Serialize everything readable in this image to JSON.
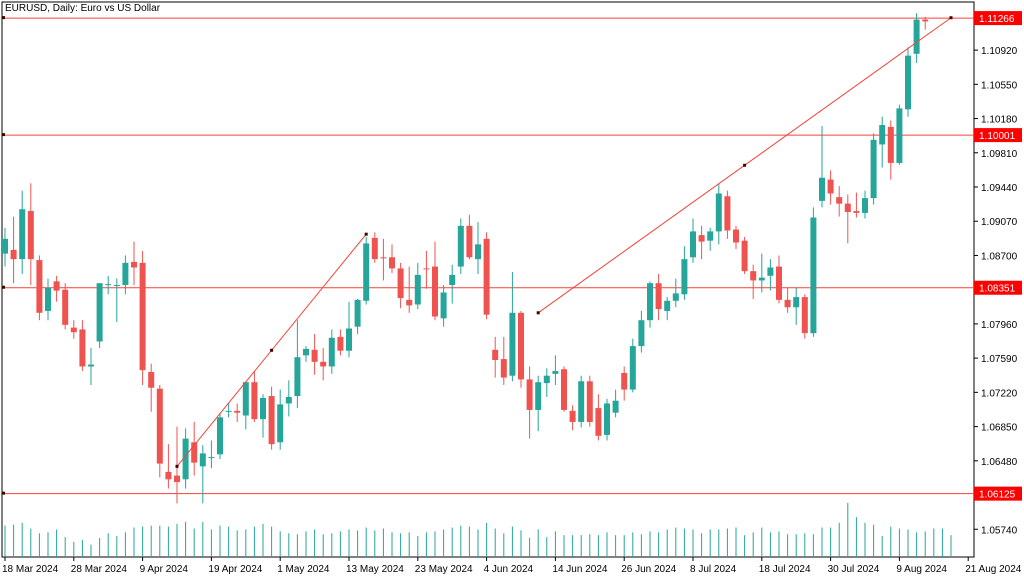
{
  "chart_data": {
    "type": "candlestick",
    "title": "EURUSD, Daily:  Euro vs US Dollar",
    "colors": {
      "bull": "#26a69a",
      "bear": "#ef5350",
      "hline": "#f44336",
      "price_tag": "#ff0000",
      "axis": "#000000",
      "volume": "#26a69a"
    },
    "ylim": [
      1.0544,
      1.1144
    ],
    "y_ticks": [
      1.1092,
      1.1055,
      1.1018,
      1.0981,
      1.0944,
      1.0907,
      1.087,
      1.0796,
      1.0759,
      1.0722,
      1.0685,
      1.0648,
      1.0574
    ],
    "y_tick_labels": [
      "1.10920",
      "1.10550",
      "1.10180",
      "1.09810",
      "1.09440",
      "1.09070",
      "1.08700",
      "1.07960",
      "1.07590",
      "1.07220",
      "1.06850",
      "1.06480",
      "1.05740"
    ],
    "hlines": [
      {
        "value": 1.11266,
        "label": "1.11266"
      },
      {
        "value": 1.10001,
        "label": "1.10001"
      },
      {
        "value": 1.08351,
        "label": "1.08351"
      },
      {
        "value": 1.06125,
        "label": "1.06125"
      }
    ],
    "x_labels": [
      "18 Mar 2024",
      "28 Mar 2024",
      "9 Apr 2024",
      "19 Apr 2024",
      "1 May 2024",
      "13 May 2024",
      "23 May 2024",
      "4 Jun 2024",
      "14 Jun 2024",
      "26 Jun 2024",
      "8 Jul 2024",
      "18 Jul 2024",
      "30 Jul 2024",
      "9 Aug 2024",
      "21 Aug 2024"
    ],
    "x_label_index": [
      0,
      8,
      16,
      24,
      32,
      40,
      48,
      56,
      64,
      72,
      80,
      88,
      96,
      104,
      112
    ],
    "trend_lines": [
      {
        "from_index": 20,
        "from_value": 1.0642,
        "to_index": 42,
        "to_value": 1.0893
      },
      {
        "from_index": 62,
        "from_value": 1.0808,
        "to_index": 110,
        "to_value": 1.1127
      }
    ],
    "candles": [
      {
        "o": 1.0872,
        "h": 1.09,
        "l": 1.0858,
        "c": 1.0888
      },
      {
        "o": 1.0876,
        "h": 1.0912,
        "l": 1.084,
        "c": 1.0866
      },
      {
        "o": 1.0866,
        "h": 1.094,
        "l": 1.085,
        "c": 1.092
      },
      {
        "o": 1.0918,
        "h": 1.0948,
        "l": 1.0838,
        "c": 1.0866
      },
      {
        "o": 1.0865,
        "h": 1.087,
        "l": 1.08,
        "c": 1.0808
      },
      {
        "o": 1.081,
        "h": 1.0845,
        "l": 1.08,
        "c": 1.0835
      },
      {
        "o": 1.0842,
        "h": 1.0848,
        "l": 1.082,
        "c": 1.0832
      },
      {
        "o": 1.0833,
        "h": 1.084,
        "l": 1.079,
        "c": 1.0795
      },
      {
        "o": 1.0792,
        "h": 1.08,
        "l": 1.078,
        "c": 1.0787
      },
      {
        "o": 1.079,
        "h": 1.08,
        "l": 1.0745,
        "c": 1.075
      },
      {
        "o": 1.075,
        "h": 1.077,
        "l": 1.073,
        "c": 1.0752
      },
      {
        "o": 1.0777,
        "h": 1.084,
        "l": 1.077,
        "c": 1.084
      },
      {
        "o": 1.0838,
        "h": 1.0848,
        "l": 1.0828,
        "c": 1.0839
      },
      {
        "o": 1.0838,
        "h": 1.0845,
        "l": 1.0798,
        "c": 1.0838
      },
      {
        "o": 1.0838,
        "h": 1.087,
        "l": 1.0828,
        "c": 1.0862
      },
      {
        "o": 1.0863,
        "h": 1.0885,
        "l": 1.0838,
        "c": 1.0857
      },
      {
        "o": 1.0862,
        "h": 1.0875,
        "l": 1.073,
        "c": 1.0746
      },
      {
        "o": 1.0744,
        "h": 1.0753,
        "l": 1.0701,
        "c": 1.0727
      },
      {
        "o": 1.0726,
        "h": 1.073,
        "l": 1.063,
        "c": 1.0645
      },
      {
        "o": 1.0636,
        "h": 1.0666,
        "l": 1.0618,
        "c": 1.0628
      },
      {
        "o": 1.0632,
        "h": 1.0685,
        "l": 1.0602,
        "c": 1.0625
      },
      {
        "o": 1.0628,
        "h": 1.0683,
        "l": 1.0618,
        "c": 1.0672
      },
      {
        "o": 1.0668,
        "h": 1.069,
        "l": 1.0632,
        "c": 1.0646
      },
      {
        "o": 1.0642,
        "h": 1.0665,
        "l": 1.0602,
        "c": 1.0656
      },
      {
        "o": 1.0652,
        "h": 1.067,
        "l": 1.064,
        "c": 1.0652
      },
      {
        "o": 1.0655,
        "h": 1.07,
        "l": 1.065,
        "c": 1.0695
      },
      {
        "o": 1.0702,
        "h": 1.071,
        "l": 1.0695,
        "c": 1.0702
      },
      {
        "o": 1.0702,
        "h": 1.071,
        "l": 1.069,
        "c": 1.07
      },
      {
        "o": 1.0697,
        "h": 1.073,
        "l": 1.0682,
        "c": 1.0733
      },
      {
        "o": 1.0733,
        "h": 1.0745,
        "l": 1.069,
        "c": 1.0693
      },
      {
        "o": 1.0693,
        "h": 1.072,
        "l": 1.0673,
        "c": 1.0716
      },
      {
        "o": 1.0718,
        "h": 1.0728,
        "l": 1.066,
        "c": 1.0666
      },
      {
        "o": 1.0668,
        "h": 1.0725,
        "l": 1.066,
        "c": 1.0709
      },
      {
        "o": 1.071,
        "h": 1.0735,
        "l": 1.0696,
        "c": 1.0717
      },
      {
        "o": 1.0718,
        "h": 1.08,
        "l": 1.0705,
        "c": 1.076
      },
      {
        "o": 1.0762,
        "h": 1.0772,
        "l": 1.0755,
        "c": 1.0769
      },
      {
        "o": 1.0768,
        "h": 1.0785,
        "l": 1.0741,
        "c": 1.0755
      },
      {
        "o": 1.0755,
        "h": 1.077,
        "l": 1.0735,
        "c": 1.075
      },
      {
        "o": 1.075,
        "h": 1.079,
        "l": 1.0742,
        "c": 1.0781
      },
      {
        "o": 1.0782,
        "h": 1.079,
        "l": 1.0762,
        "c": 1.0767
      },
      {
        "o": 1.0767,
        "h": 1.082,
        "l": 1.076,
        "c": 1.0791
      },
      {
        "o": 1.0793,
        "h": 1.0823,
        "l": 1.0785,
        "c": 1.0822
      },
      {
        "o": 1.0821,
        "h": 1.089,
        "l": 1.0817,
        "c": 1.0883
      },
      {
        "o": 1.0889,
        "h": 1.0895,
        "l": 1.0862,
        "c": 1.0866
      },
      {
        "o": 1.0868,
        "h": 1.0888,
        "l": 1.0843,
        "c": 1.0867
      },
      {
        "o": 1.0868,
        "h": 1.0882,
        "l": 1.0851,
        "c": 1.0856
      },
      {
        "o": 1.0856,
        "h": 1.0862,
        "l": 1.0813,
        "c": 1.0824
      },
      {
        "o": 1.0822,
        "h": 1.0858,
        "l": 1.0808,
        "c": 1.0816
      },
      {
        "o": 1.0817,
        "h": 1.0862,
        "l": 1.0812,
        "c": 1.0849
      },
      {
        "o": 1.0856,
        "h": 1.0875,
        "l": 1.0834,
        "c": 1.0855
      },
      {
        "o": 1.0858,
        "h": 1.0885,
        "l": 1.08,
        "c": 1.0804
      },
      {
        "o": 1.0802,
        "h": 1.0838,
        "l": 1.0793,
        "c": 1.083
      },
      {
        "o": 1.0838,
        "h": 1.086,
        "l": 1.0818,
        "c": 1.0849
      },
      {
        "o": 1.0858,
        "h": 1.091,
        "l": 1.085,
        "c": 1.0902
      },
      {
        "o": 1.0902,
        "h": 1.0914,
        "l": 1.0866,
        "c": 1.0868
      },
      {
        "o": 1.0866,
        "h": 1.0906,
        "l": 1.085,
        "c": 1.0882
      },
      {
        "o": 1.0888,
        "h": 1.0895,
        "l": 1.0801,
        "c": 1.0806
      },
      {
        "o": 1.0768,
        "h": 1.0782,
        "l": 1.0738,
        "c": 1.0757
      },
      {
        "o": 1.0758,
        "h": 1.0782,
        "l": 1.073,
        "c": 1.0738
      },
      {
        "o": 1.074,
        "h": 1.0852,
        "l": 1.0734,
        "c": 1.0808
      },
      {
        "o": 1.0808,
        "h": 1.081,
        "l": 1.0727,
        "c": 1.0736
      },
      {
        "o": 1.0736,
        "h": 1.075,
        "l": 1.0672,
        "c": 1.0703
      },
      {
        "o": 1.0703,
        "h": 1.074,
        "l": 1.068,
        "c": 1.0733
      },
      {
        "o": 1.0732,
        "h": 1.0748,
        "l": 1.0717,
        "c": 1.074
      },
      {
        "o": 1.0742,
        "h": 1.0762,
        "l": 1.073,
        "c": 1.0745
      },
      {
        "o": 1.0747,
        "h": 1.075,
        "l": 1.0701,
        "c": 1.0703
      },
      {
        "o": 1.0702,
        "h": 1.0708,
        "l": 1.0681,
        "c": 1.069
      },
      {
        "o": 1.069,
        "h": 1.074,
        "l": 1.0684,
        "c": 1.0734
      },
      {
        "o": 1.0734,
        "h": 1.074,
        "l": 1.0685,
        "c": 1.069
      },
      {
        "o": 1.0705,
        "h": 1.072,
        "l": 1.067,
        "c": 1.0675
      },
      {
        "o": 1.0676,
        "h": 1.0715,
        "l": 1.067,
        "c": 1.071
      },
      {
        "o": 1.07,
        "h": 1.0725,
        "l": 1.0695,
        "c": 1.0713
      },
      {
        "o": 1.0743,
        "h": 1.075,
        "l": 1.0713,
        "c": 1.0725
      },
      {
        "o": 1.0725,
        "h": 1.078,
        "l": 1.0722,
        "c": 1.0772
      },
      {
        "o": 1.0772,
        "h": 1.081,
        "l": 1.0765,
        "c": 1.08
      },
      {
        "o": 1.08,
        "h": 1.0842,
        "l": 1.0792,
        "c": 1.084
      },
      {
        "o": 1.084,
        "h": 1.085,
        "l": 1.08,
        "c": 1.0812
      },
      {
        "o": 1.081,
        "h": 1.0825,
        "l": 1.08,
        "c": 1.0821
      },
      {
        "o": 1.0821,
        "h": 1.0845,
        "l": 1.0814,
        "c": 1.0829
      },
      {
        "o": 1.0828,
        "h": 1.088,
        "l": 1.0822,
        "c": 1.0866
      },
      {
        "o": 1.0868,
        "h": 1.091,
        "l": 1.0862,
        "c": 1.0896
      },
      {
        "o": 1.0892,
        "h": 1.0902,
        "l": 1.0866,
        "c": 1.0885
      },
      {
        "o": 1.0886,
        "h": 1.09,
        "l": 1.0875,
        "c": 1.0896
      },
      {
        "o": 1.0896,
        "h": 1.0948,
        "l": 1.0882,
        "c": 1.0937
      },
      {
        "o": 1.0934,
        "h": 1.094,
        "l": 1.0888,
        "c": 1.0897
      },
      {
        "o": 1.0898,
        "h": 1.0902,
        "l": 1.0877,
        "c": 1.0884
      },
      {
        "o": 1.0886,
        "h": 1.089,
        "l": 1.085,
        "c": 1.0853
      },
      {
        "o": 1.0853,
        "h": 1.086,
        "l": 1.0823,
        "c": 1.0843
      },
      {
        "o": 1.0843,
        "h": 1.0872,
        "l": 1.083,
        "c": 1.0846
      },
      {
        "o": 1.0848,
        "h": 1.0866,
        "l": 1.0832,
        "c": 1.0857
      },
      {
        "o": 1.0858,
        "h": 1.087,
        "l": 1.0818,
        "c": 1.0822
      },
      {
        "o": 1.0822,
        "h": 1.0835,
        "l": 1.0808,
        "c": 1.0814
      },
      {
        "o": 1.0814,
        "h": 1.0835,
        "l": 1.0795,
        "c": 1.0825
      },
      {
        "o": 1.0825,
        "h": 1.0828,
        "l": 1.078,
        "c": 1.0786
      },
      {
        "o": 1.0786,
        "h": 1.0922,
        "l": 1.0782,
        "c": 1.0911
      },
      {
        "o": 1.0929,
        "h": 1.101,
        "l": 1.0922,
        "c": 1.0954
      },
      {
        "o": 1.0952,
        "h": 1.0962,
        "l": 1.0925,
        "c": 1.0937
      },
      {
        "o": 1.0933,
        "h": 1.0945,
        "l": 1.0912,
        "c": 1.0926
      },
      {
        "o": 1.0926,
        "h": 1.0936,
        "l": 1.0883,
        "c": 1.0917
      },
      {
        "o": 1.0918,
        "h": 1.0938,
        "l": 1.0911,
        "c": 1.0916
      },
      {
        "o": 1.0916,
        "h": 1.094,
        "l": 1.091,
        "c": 1.0932
      },
      {
        "o": 1.0932,
        "h": 1.1002,
        "l": 1.0925,
        "c": 1.0995
      },
      {
        "o": 1.099,
        "h": 1.102,
        "l": 1.0965,
        "c": 1.1011
      },
      {
        "o": 1.1009,
        "h": 1.1016,
        "l": 1.0952,
        "c": 1.097
      },
      {
        "o": 1.097,
        "h": 1.1033,
        "l": 1.0968,
        "c": 1.1029
      },
      {
        "o": 1.1028,
        "h": 1.1095,
        "l": 1.102,
        "c": 1.1086
      },
      {
        "o": 1.1088,
        "h": 1.1132,
        "l": 1.1078,
        "c": 1.1125
      },
      {
        "o": 1.1125,
        "h": 1.1128,
        "l": 1.1114,
        "c": 1.1123
      }
    ],
    "volume": [
      33,
      34,
      36,
      30,
      25,
      26,
      29,
      21,
      16,
      18,
      13,
      20,
      25,
      22,
      26,
      31,
      32,
      33,
      33,
      32,
      35,
      37,
      30,
      37,
      29,
      33,
      32,
      28,
      29,
      32,
      35,
      32,
      27,
      25,
      24,
      27,
      29,
      24,
      25,
      27,
      29,
      28,
      31,
      28,
      30,
      26,
      25,
      26,
      22,
      26,
      27,
      29,
      31,
      33,
      32,
      29,
      36,
      30,
      25,
      32,
      28,
      20,
      29,
      21,
      27,
      23,
      23,
      23,
      24,
      23,
      26,
      23,
      23,
      26,
      24,
      27,
      26,
      29,
      31,
      30,
      29,
      25,
      29,
      29,
      30,
      31,
      23,
      26,
      31,
      26,
      27,
      24,
      24,
      25,
      24,
      31,
      31,
      36,
      57,
      42,
      36,
      34,
      22,
      32,
      30,
      29,
      26,
      27,
      30,
      30,
      23,
      1
    ]
  }
}
